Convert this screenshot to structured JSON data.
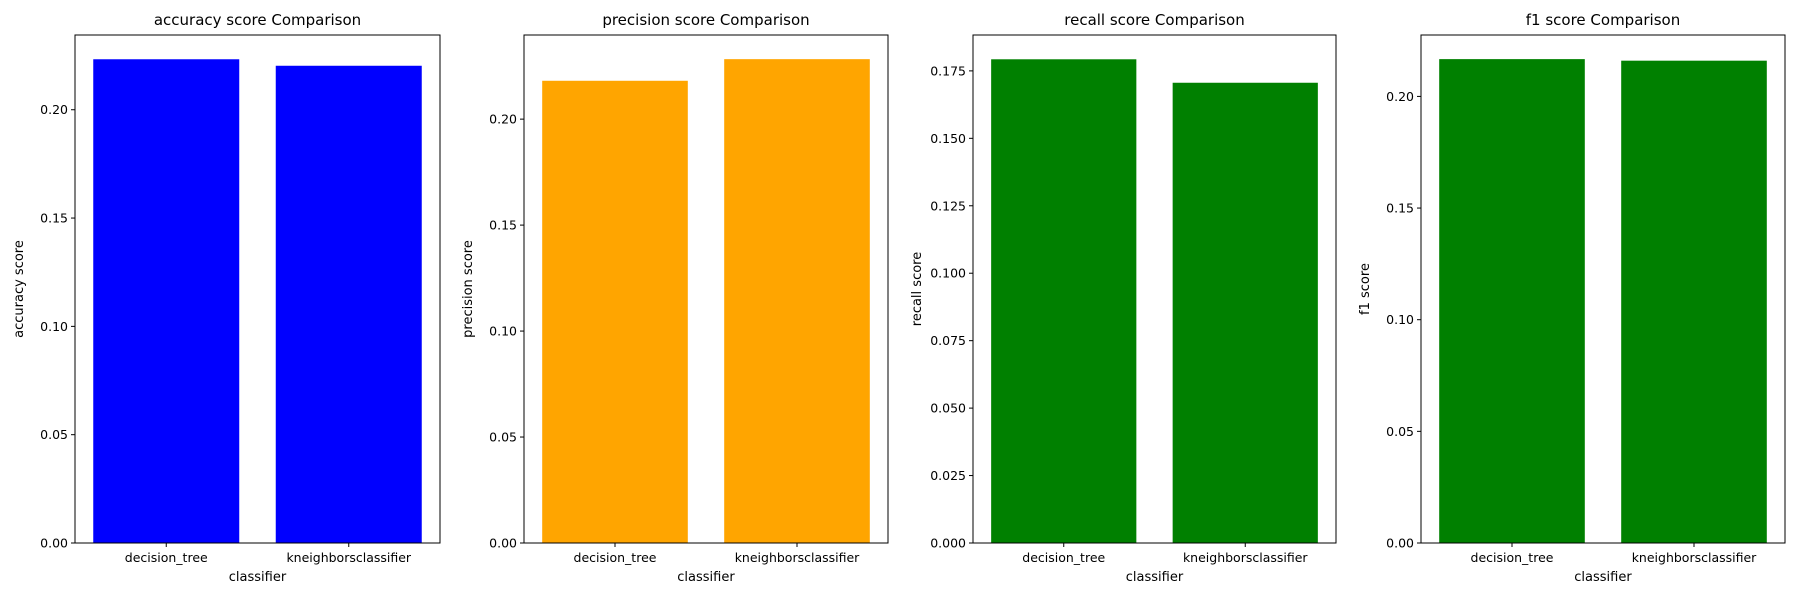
{
  "chart_data": [
    {
      "type": "bar",
      "title": "accuracy score Comparison",
      "xlabel": "classifier",
      "ylabel": "accuracy score",
      "categories": [
        "decision_tree",
        "kneighborsclassifier"
      ],
      "values": [
        0.2233,
        0.2203
      ],
      "color": "#0000ff",
      "ylim": [
        0,
        0.2345
      ],
      "yticks": [
        "0.00",
        "0.05",
        "0.10",
        "0.15",
        "0.20"
      ],
      "ytick_values": [
        0,
        0.05,
        0.1,
        0.15,
        0.2
      ],
      "grid": false,
      "legend": "none"
    },
    {
      "type": "bar",
      "title": "precision score Comparison",
      "xlabel": "classifier",
      "ylabel": "precision score",
      "categories": [
        "decision_tree",
        "kneighborsclassifier"
      ],
      "values": [
        0.2181,
        0.2283
      ],
      "color": "#ffa500",
      "ylim": [
        0,
        0.2397
      ],
      "yticks": [
        "0.00",
        "0.05",
        "0.10",
        "0.15",
        "0.20"
      ],
      "ytick_values": [
        0,
        0.05,
        0.1,
        0.15,
        0.2
      ],
      "grid": false,
      "legend": "none"
    },
    {
      "type": "bar",
      "title": "recall score Comparison",
      "xlabel": "classifier",
      "ylabel": "recall score",
      "categories": [
        "decision_tree",
        "kneighborsclassifier"
      ],
      "values": [
        0.1793,
        0.1706
      ],
      "color": "#008000",
      "ylim": [
        0,
        0.1883
      ],
      "yticks": [
        "0.000",
        "0.025",
        "0.050",
        "0.075",
        "0.100",
        "0.125",
        "0.150",
        "0.175"
      ],
      "ytick_values": [
        0,
        0.025,
        0.05,
        0.075,
        0.1,
        0.125,
        0.15,
        0.175
      ],
      "grid": false,
      "legend": "none"
    },
    {
      "type": "bar",
      "title": "f1 score Comparison",
      "xlabel": "classifier",
      "ylabel": "f1 score",
      "categories": [
        "decision_tree",
        "kneighborsclassifier"
      ],
      "values": [
        0.2167,
        0.216
      ],
      "color": "#008000",
      "ylim": [
        0,
        0.2275
      ],
      "yticks": [
        "0.00",
        "0.05",
        "0.10",
        "0.15",
        "0.20"
      ],
      "ytick_values": [
        0,
        0.05,
        0.1,
        0.15,
        0.2
      ],
      "grid": false,
      "legend": "none"
    }
  ]
}
